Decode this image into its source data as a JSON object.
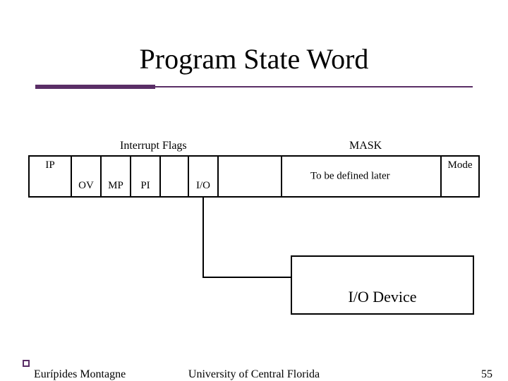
{
  "title": "Program State Word",
  "accent_color": "#5a2e66",
  "headers": {
    "interrupt": "Interrupt Flags",
    "mask": "MASK"
  },
  "cells": {
    "ip": "IP",
    "ov": "OV",
    "mp": "MP",
    "pi": "PI",
    "io": "I/O",
    "mask_text": "To be defined later",
    "mode": "Mode"
  },
  "device_box": "I/O   Device",
  "footer": {
    "author": "Eurípides Montagne",
    "institution": "University of Central Florida",
    "page": "55"
  },
  "colors": {
    "text": "#000000",
    "border": "#000000",
    "background": "#ffffff"
  }
}
